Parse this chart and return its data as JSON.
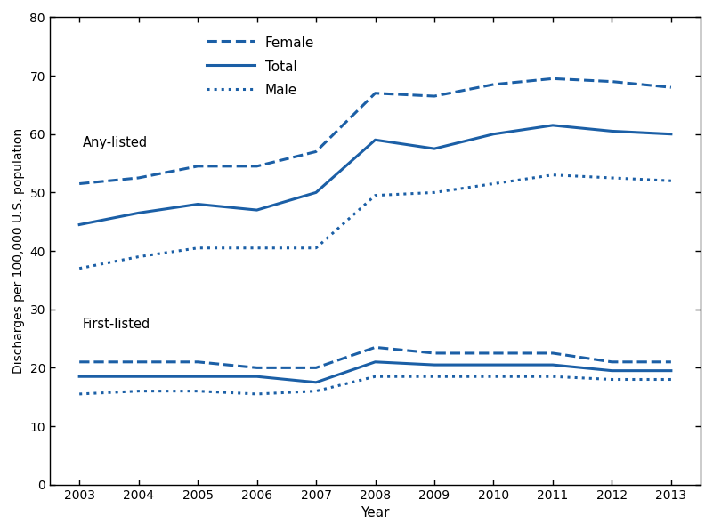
{
  "years": [
    2003,
    2004,
    2005,
    2006,
    2007,
    2008,
    2009,
    2010,
    2011,
    2012,
    2013
  ],
  "any_female": [
    51.5,
    52.5,
    54.5,
    54.5,
    57.0,
    67.0,
    66.5,
    68.5,
    69.5,
    69.0,
    68.0
  ],
  "any_total": [
    44.5,
    46.5,
    48.0,
    47.0,
    50.0,
    59.0,
    57.5,
    60.0,
    61.5,
    60.5,
    60.0
  ],
  "any_male": [
    37.0,
    39.0,
    40.5,
    40.5,
    40.5,
    49.5,
    50.0,
    51.5,
    53.0,
    52.5,
    52.0
  ],
  "first_female": [
    21.0,
    21.0,
    21.0,
    20.0,
    20.0,
    23.5,
    22.5,
    22.5,
    22.5,
    21.0,
    21.0
  ],
  "first_total": [
    18.5,
    18.5,
    18.5,
    18.5,
    17.5,
    21.0,
    20.5,
    20.5,
    20.5,
    19.5,
    19.5
  ],
  "first_male": [
    15.5,
    16.0,
    16.0,
    15.5,
    16.0,
    18.5,
    18.5,
    18.5,
    18.5,
    18.0,
    18.0
  ],
  "color": "#1B5FA6",
  "xlabel": "Year",
  "ylabel": "Discharges per 100,000 U.S. population",
  "ylim": [
    0,
    80
  ],
  "yticks": [
    0,
    10,
    20,
    30,
    40,
    50,
    60,
    70,
    80
  ],
  "legend_female": "Female",
  "legend_total": "Total",
  "legend_male": "Male",
  "label_any": "Any-listed",
  "label_first": "First-listed",
  "lw": 2.2
}
